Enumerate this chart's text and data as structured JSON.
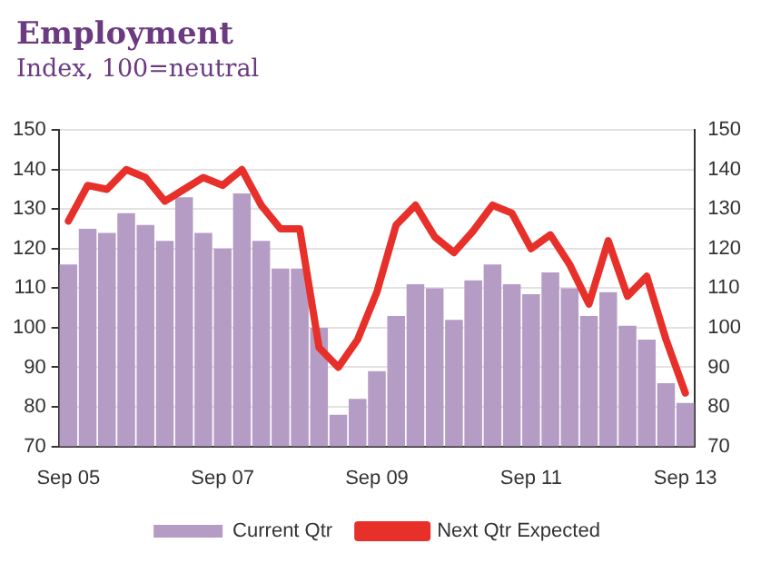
{
  "chart_data": {
    "type": "bar",
    "title": "Employment",
    "subtitle": "Index, 100=neutral",
    "categories": [
      "Sep 05",
      null,
      null,
      null,
      null,
      null,
      null,
      null,
      "Sep 07",
      null,
      null,
      null,
      null,
      null,
      null,
      null,
      "Sep 09",
      null,
      null,
      null,
      null,
      null,
      null,
      null,
      "Sep 11",
      null,
      null,
      null,
      null,
      null,
      null,
      null,
      "Sep 13"
    ],
    "series": [
      {
        "name": "Current Qtr",
        "color": "#b59cc4",
        "values": [
          116,
          125,
          124,
          129,
          126,
          122,
          133,
          124,
          120,
          134,
          122,
          115,
          115,
          100,
          78,
          82,
          89,
          103,
          111,
          110,
          102,
          112,
          116,
          111,
          108.5,
          114,
          110,
          103,
          109,
          100.5,
          97,
          86,
          81
        ]
      },
      {
        "name": "Next Qtr Expected",
        "type": "line",
        "color": "#e8302a",
        "values": [
          127,
          136,
          135,
          140,
          138,
          132,
          135,
          138,
          136,
          140,
          131,
          125,
          125,
          95,
          90,
          97,
          109,
          126,
          131,
          123,
          119,
          124.5,
          131,
          129,
          120,
          123.5,
          116,
          106,
          122,
          108,
          113,
          97,
          83.5
        ]
      }
    ],
    "ylim": [
      70,
      150
    ],
    "yticks": [
      70,
      80,
      90,
      100,
      110,
      120,
      130,
      140,
      150
    ],
    "y2lim": [
      70,
      150
    ],
    "y2ticks": [
      70,
      80,
      90,
      100,
      110,
      120,
      130,
      140,
      150
    ],
    "grid": "y",
    "legend": "bottom",
    "marker": "none"
  }
}
